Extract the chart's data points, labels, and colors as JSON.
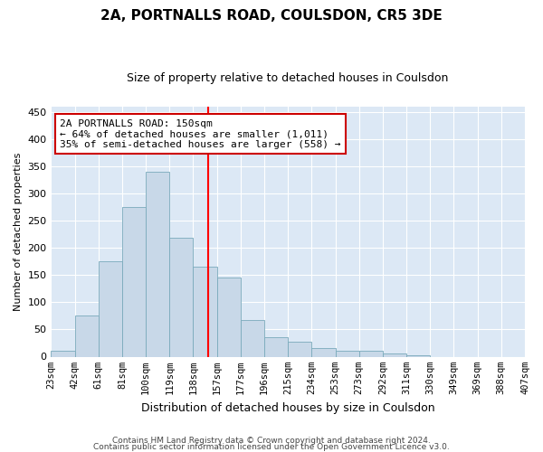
{
  "title1": "2A, PORTNALLS ROAD, COULSDON, CR5 3DE",
  "title2": "Size of property relative to detached houses in Coulsdon",
  "xlabel": "Distribution of detached houses by size in Coulsdon",
  "ylabel": "Number of detached properties",
  "bins": [
    "23sqm",
    "42sqm",
    "61sqm",
    "81sqm",
    "100sqm",
    "119sqm",
    "138sqm",
    "157sqm",
    "177sqm",
    "196sqm",
    "215sqm",
    "234sqm",
    "253sqm",
    "273sqm",
    "292sqm",
    "311sqm",
    "330sqm",
    "349sqm",
    "369sqm",
    "388sqm",
    "407sqm"
  ],
  "bar_values": [
    10,
    75,
    175,
    275,
    340,
    218,
    165,
    145,
    68,
    35,
    28,
    15,
    10,
    10,
    6,
    2,
    0,
    0,
    0,
    0
  ],
  "bar_color": "#c8d8e8",
  "bar_edge_color": "#7aaabb",
  "vline_position": 6.63,
  "annotation_line1": "2A PORTNALLS ROAD: 150sqm",
  "annotation_line2": "← 64% of detached houses are smaller (1,011)",
  "annotation_line3": "35% of semi-detached houses are larger (558) →",
  "annotation_box_color": "#ffffff",
  "annotation_box_edge": "#cc0000",
  "footer1": "Contains HM Land Registry data © Crown copyright and database right 2024.",
  "footer2": "Contains public sector information licensed under the Open Government Licence v3.0.",
  "plot_bg_color": "#dce8f5",
  "fig_bg_color": "#ffffff",
  "ylim": [
    0,
    460
  ],
  "yticks": [
    0,
    50,
    100,
    150,
    200,
    250,
    300,
    350,
    400,
    450
  ],
  "grid_color": "#ffffff",
  "title1_fontsize": 11,
  "title2_fontsize": 9,
  "ylabel_fontsize": 8,
  "xlabel_fontsize": 9,
  "tick_fontsize": 7.5,
  "ytick_fontsize": 8,
  "footer_fontsize": 6.5,
  "annot_fontsize": 8
}
